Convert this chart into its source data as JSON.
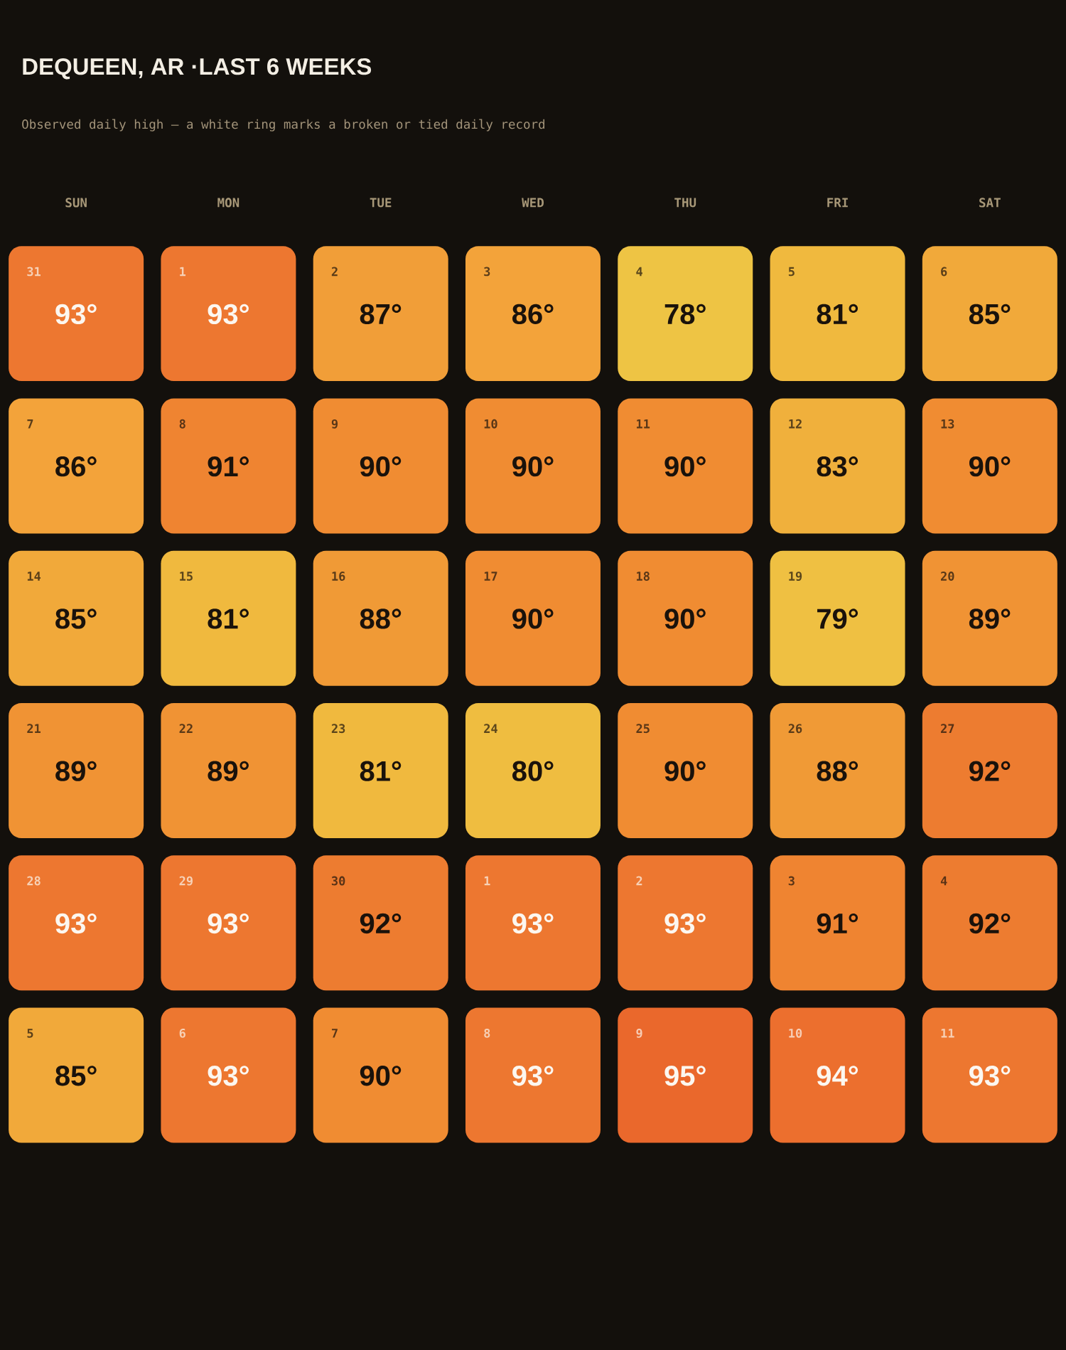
{
  "chart_data": {
    "type": "heatmap",
    "title": "DEQUEEN, AR ·LAST 6 WEEKS",
    "subtitle": "Observed daily high — a white ring marks a broken or tied daily record",
    "categories": [
      "SUN",
      "MON",
      "TUE",
      "WED",
      "THU",
      "FRI",
      "SAT"
    ],
    "y_categories": [
      null,
      null,
      null,
      null,
      null,
      null
    ],
    "cells": [
      [
        93,
        93,
        87,
        86,
        78,
        81,
        85
      ],
      [
        86,
        91,
        90,
        90,
        90,
        83,
        90
      ],
      [
        85,
        81,
        88,
        90,
        90,
        79,
        89
      ],
      [
        89,
        89,
        81,
        80,
        90,
        88,
        92
      ],
      [
        93,
        93,
        92,
        93,
        93,
        91,
        92
      ],
      [
        85,
        93,
        90,
        93,
        95,
        94,
        93
      ]
    ],
    "cell_labels": [
      [
        "93°",
        "93°",
        "87°",
        "86°",
        "78°",
        "81°",
        "85°"
      ],
      [
        "86°",
        "91°",
        "90°",
        "90°",
        "90°",
        "83°",
        "90°"
      ],
      [
        "85°",
        "81°",
        "88°",
        "90°",
        "90°",
        "79°",
        "89°"
      ],
      [
        "89°",
        "89°",
        "81°",
        "80°",
        "90°",
        "88°",
        "92°"
      ],
      [
        "93°",
        "93°",
        "92°",
        "93°",
        "93°",
        "91°",
        "92°"
      ],
      [
        "85°",
        "93°",
        "90°",
        "93°",
        "95°",
        "94°",
        "93°"
      ]
    ],
    "annotations": [
      "31",
      "1",
      "2",
      "3",
      "4",
      "5",
      "6",
      "7",
      "8",
      "9",
      "10",
      "11",
      "12",
      "13",
      "14",
      "15",
      "16",
      "17",
      "18",
      "19",
      "20",
      "21",
      "22",
      "23",
      "24",
      "25",
      "26",
      "27",
      "28",
      "29",
      "30",
      "1",
      "2",
      "3",
      "4",
      "5",
      "6",
      "7",
      "8",
      "9",
      "10",
      "11"
    ]
  }
}
